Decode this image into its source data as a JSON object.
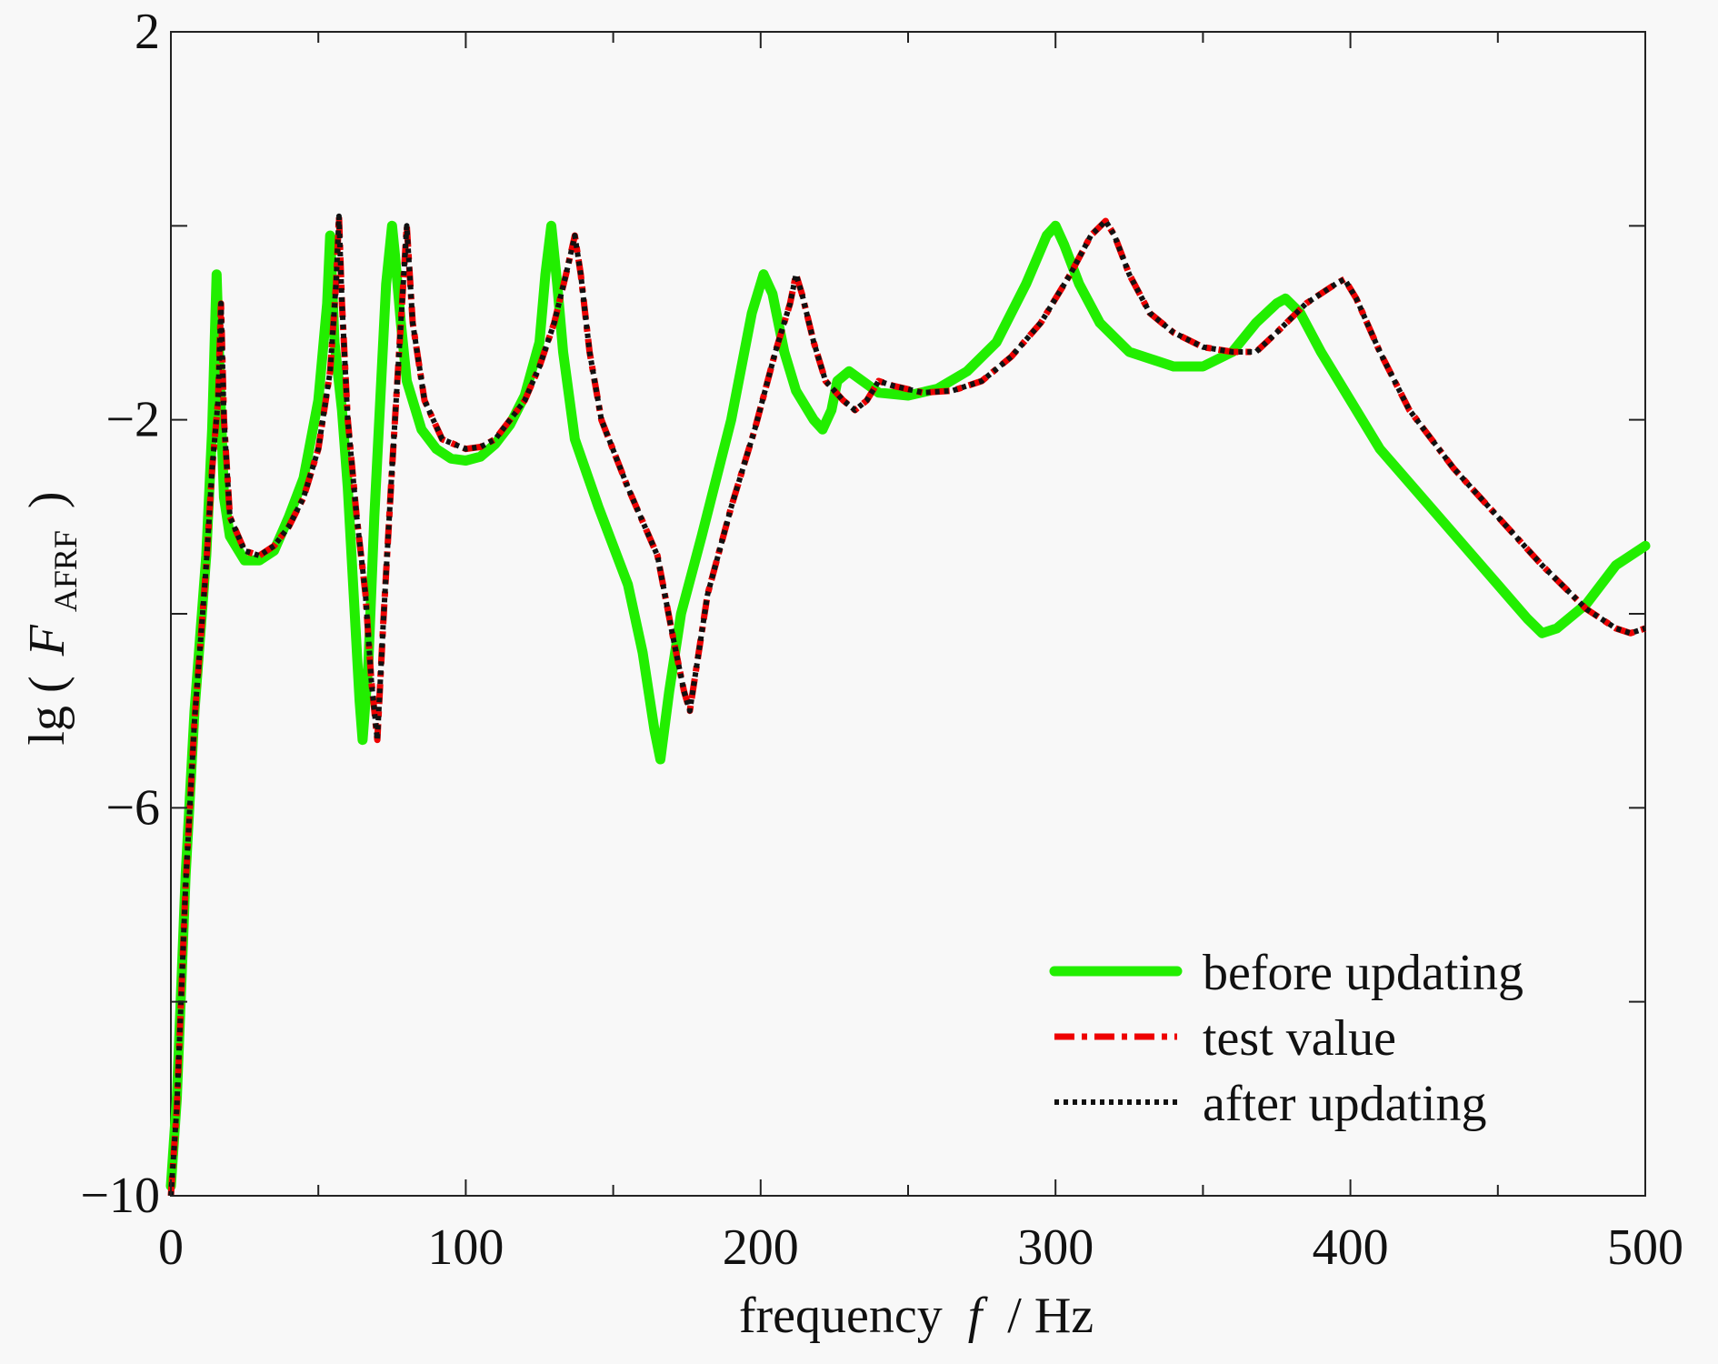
{
  "chart_data": {
    "type": "line",
    "title": "",
    "xlabel": {
      "text": "frequency",
      "var": "f",
      "unit": "/ Hz"
    },
    "ylabel": {
      "prefix": "lg (",
      "var": "F",
      "sub": "AFRF",
      "suffix": ")"
    },
    "xlim": [
      0,
      500
    ],
    "ylim": [
      -10,
      2
    ],
    "xticks": [
      0,
      100,
      200,
      300,
      400,
      500
    ],
    "xtick_labels": [
      "0",
      "100",
      "200",
      "300",
      "400",
      "500"
    ],
    "yticks": [
      -10,
      -6,
      -2,
      2
    ],
    "ytick_labels": [
      "−10",
      "−6",
      "−2",
      "2"
    ],
    "grid": false,
    "legend_position": "bottom-right",
    "series": [
      {
        "name": "before updating",
        "color": "#22ee00",
        "style": "solid",
        "points": [
          [
            0,
            -9.9
          ],
          [
            2,
            -9.0
          ],
          [
            5,
            -6.7
          ],
          [
            8,
            -5.0
          ],
          [
            12,
            -3.4
          ],
          [
            14,
            -2.1
          ],
          [
            15.5,
            -0.5
          ],
          [
            16.5,
            -1.5
          ],
          [
            18,
            -2.8
          ],
          [
            20,
            -3.2
          ],
          [
            25,
            -3.45
          ],
          [
            30,
            -3.45
          ],
          [
            35,
            -3.35
          ],
          [
            40,
            -3.0
          ],
          [
            45,
            -2.6
          ],
          [
            50,
            -1.8
          ],
          [
            53,
            -0.8
          ],
          [
            54,
            -0.1
          ],
          [
            55.5,
            -1.2
          ],
          [
            58,
            -1.9
          ],
          [
            60,
            -2.7
          ],
          [
            62,
            -3.8
          ],
          [
            64,
            -4.9
          ],
          [
            65,
            -5.3
          ],
          [
            67,
            -4.5
          ],
          [
            69,
            -3.0
          ],
          [
            71,
            -1.8
          ],
          [
            73,
            -0.6
          ],
          [
            75,
            0.0
          ],
          [
            76,
            -0.3
          ],
          [
            78,
            -1.0
          ],
          [
            80,
            -1.6
          ],
          [
            85,
            -2.1
          ],
          [
            90,
            -2.3
          ],
          [
            95,
            -2.4
          ],
          [
            100,
            -2.42
          ],
          [
            105,
            -2.38
          ],
          [
            110,
            -2.25
          ],
          [
            115,
            -2.05
          ],
          [
            120,
            -1.75
          ],
          [
            125,
            -1.2
          ],
          [
            127,
            -0.5
          ],
          [
            129,
            0.0
          ],
          [
            131,
            -0.6
          ],
          [
            133,
            -1.3
          ],
          [
            137,
            -2.2
          ],
          [
            145,
            -2.9
          ],
          [
            155,
            -3.7
          ],
          [
            160,
            -4.4
          ],
          [
            164,
            -5.2
          ],
          [
            166,
            -5.5
          ],
          [
            169,
            -4.8
          ],
          [
            173,
            -4.0
          ],
          [
            180,
            -3.2
          ],
          [
            190,
            -2.0
          ],
          [
            197,
            -0.9
          ],
          [
            201,
            -0.5
          ],
          [
            204,
            -0.7
          ],
          [
            208,
            -1.3
          ],
          [
            212,
            -1.7
          ],
          [
            218,
            -2.0
          ],
          [
            221,
            -2.1
          ],
          [
            224,
            -1.9
          ],
          [
            226,
            -1.6
          ],
          [
            230,
            -1.5
          ],
          [
            240,
            -1.72
          ],
          [
            250,
            -1.75
          ],
          [
            260,
            -1.68
          ],
          [
            270,
            -1.5
          ],
          [
            280,
            -1.2
          ],
          [
            290,
            -0.6
          ],
          [
            297,
            -0.1
          ],
          [
            300,
            0.0
          ],
          [
            303,
            -0.2
          ],
          [
            308,
            -0.6
          ],
          [
            315,
            -1.0
          ],
          [
            325,
            -1.3
          ],
          [
            340,
            -1.45
          ],
          [
            350,
            -1.45
          ],
          [
            360,
            -1.3
          ],
          [
            368,
            -1.0
          ],
          [
            375,
            -0.8
          ],
          [
            378,
            -0.75
          ],
          [
            383,
            -0.9
          ],
          [
            390,
            -1.3
          ],
          [
            400,
            -1.8
          ],
          [
            410,
            -2.3
          ],
          [
            430,
            -3.0
          ],
          [
            450,
            -3.7
          ],
          [
            460,
            -4.05
          ],
          [
            465,
            -4.2
          ],
          [
            470,
            -4.15
          ],
          [
            480,
            -3.9
          ],
          [
            490,
            -3.5
          ],
          [
            500,
            -3.3
          ]
        ]
      },
      {
        "name": "test value",
        "color": "#ee0000",
        "style": "dashdot",
        "points": [
          [
            0,
            -10.0
          ],
          [
            2,
            -9.1
          ],
          [
            5,
            -6.8
          ],
          [
            8,
            -5.1
          ],
          [
            12,
            -3.5
          ],
          [
            14,
            -2.5
          ],
          [
            16,
            -1.8
          ],
          [
            17,
            -0.8
          ],
          [
            18,
            -2.0
          ],
          [
            20,
            -3.0
          ],
          [
            25,
            -3.35
          ],
          [
            30,
            -3.4
          ],
          [
            35,
            -3.3
          ],
          [
            40,
            -3.1
          ],
          [
            45,
            -2.8
          ],
          [
            50,
            -2.3
          ],
          [
            54,
            -1.5
          ],
          [
            56,
            -0.6
          ],
          [
            57,
            0.1
          ],
          [
            58,
            -0.8
          ],
          [
            60,
            -2.0
          ],
          [
            63,
            -3.0
          ],
          [
            66,
            -3.8
          ],
          [
            68,
            -4.7
          ],
          [
            70,
            -5.3
          ],
          [
            72,
            -4.1
          ],
          [
            75,
            -2.5
          ],
          [
            78,
            -1.0
          ],
          [
            80,
            0.0
          ],
          [
            82,
            -1.0
          ],
          [
            86,
            -1.8
          ],
          [
            92,
            -2.2
          ],
          [
            100,
            -2.3
          ],
          [
            105,
            -2.28
          ],
          [
            110,
            -2.2
          ],
          [
            115,
            -2.0
          ],
          [
            120,
            -1.8
          ],
          [
            125,
            -1.45
          ],
          [
            130,
            -1.0
          ],
          [
            134,
            -0.5
          ],
          [
            137,
            -0.1
          ],
          [
            139,
            -0.5
          ],
          [
            142,
            -1.3
          ],
          [
            146,
            -2.0
          ],
          [
            155,
            -2.7
          ],
          [
            165,
            -3.4
          ],
          [
            170,
            -4.2
          ],
          [
            174,
            -4.8
          ],
          [
            176,
            -5.0
          ],
          [
            178,
            -4.6
          ],
          [
            182,
            -3.8
          ],
          [
            190,
            -2.9
          ],
          [
            198,
            -2.1
          ],
          [
            205,
            -1.3
          ],
          [
            210,
            -0.8
          ],
          [
            212,
            -0.5
          ],
          [
            214,
            -0.7
          ],
          [
            218,
            -1.2
          ],
          [
            222,
            -1.6
          ],
          [
            228,
            -1.8
          ],
          [
            232,
            -1.9
          ],
          [
            236,
            -1.8
          ],
          [
            240,
            -1.6
          ],
          [
            245,
            -1.65
          ],
          [
            255,
            -1.72
          ],
          [
            265,
            -1.7
          ],
          [
            275,
            -1.6
          ],
          [
            285,
            -1.35
          ],
          [
            295,
            -1.0
          ],
          [
            305,
            -0.5
          ],
          [
            312,
            -0.1
          ],
          [
            317,
            0.05
          ],
          [
            320,
            -0.1
          ],
          [
            325,
            -0.5
          ],
          [
            332,
            -0.9
          ],
          [
            340,
            -1.1
          ],
          [
            350,
            -1.25
          ],
          [
            360,
            -1.3
          ],
          [
            368,
            -1.3
          ],
          [
            375,
            -1.1
          ],
          [
            385,
            -0.8
          ],
          [
            395,
            -0.6
          ],
          [
            398,
            -0.55
          ],
          [
            402,
            -0.75
          ],
          [
            410,
            -1.3
          ],
          [
            420,
            -1.9
          ],
          [
            435,
            -2.5
          ],
          [
            450,
            -3.0
          ],
          [
            465,
            -3.5
          ],
          [
            480,
            -3.95
          ],
          [
            490,
            -4.15
          ],
          [
            495,
            -4.2
          ],
          [
            500,
            -4.15
          ]
        ]
      },
      {
        "name": "after updating",
        "color": "#111111",
        "style": "dotted",
        "points": [
          [
            0,
            -10.0
          ],
          [
            2,
            -9.1
          ],
          [
            5,
            -6.8
          ],
          [
            8,
            -5.1
          ],
          [
            12,
            -3.5
          ],
          [
            14,
            -2.5
          ],
          [
            16,
            -1.8
          ],
          [
            17,
            -0.8
          ],
          [
            18,
            -2.0
          ],
          [
            20,
            -3.0
          ],
          [
            25,
            -3.35
          ],
          [
            30,
            -3.4
          ],
          [
            35,
            -3.3
          ],
          [
            40,
            -3.1
          ],
          [
            45,
            -2.8
          ],
          [
            50,
            -2.3
          ],
          [
            54,
            -1.5
          ],
          [
            56,
            -0.6
          ],
          [
            57,
            0.1
          ],
          [
            58,
            -0.8
          ],
          [
            60,
            -2.0
          ],
          [
            63,
            -3.0
          ],
          [
            66,
            -3.8
          ],
          [
            68,
            -4.7
          ],
          [
            70,
            -5.3
          ],
          [
            72,
            -4.1
          ],
          [
            75,
            -2.5
          ],
          [
            78,
            -1.0
          ],
          [
            80,
            0.0
          ],
          [
            82,
            -1.0
          ],
          [
            86,
            -1.8
          ],
          [
            92,
            -2.2
          ],
          [
            100,
            -2.3
          ],
          [
            105,
            -2.28
          ],
          [
            110,
            -2.2
          ],
          [
            115,
            -2.0
          ],
          [
            120,
            -1.8
          ],
          [
            125,
            -1.45
          ],
          [
            130,
            -1.0
          ],
          [
            134,
            -0.5
          ],
          [
            137,
            -0.1
          ],
          [
            139,
            -0.5
          ],
          [
            142,
            -1.3
          ],
          [
            146,
            -2.0
          ],
          [
            155,
            -2.7
          ],
          [
            165,
            -3.4
          ],
          [
            170,
            -4.2
          ],
          [
            174,
            -4.8
          ],
          [
            176,
            -5.0
          ],
          [
            178,
            -4.6
          ],
          [
            182,
            -3.8
          ],
          [
            190,
            -2.9
          ],
          [
            198,
            -2.1
          ],
          [
            205,
            -1.3
          ],
          [
            210,
            -0.8
          ],
          [
            212,
            -0.5
          ],
          [
            214,
            -0.7
          ],
          [
            218,
            -1.2
          ],
          [
            222,
            -1.6
          ],
          [
            228,
            -1.8
          ],
          [
            232,
            -1.9
          ],
          [
            236,
            -1.8
          ],
          [
            240,
            -1.6
          ],
          [
            245,
            -1.65
          ],
          [
            255,
            -1.72
          ],
          [
            265,
            -1.7
          ],
          [
            275,
            -1.6
          ],
          [
            285,
            -1.35
          ],
          [
            295,
            -1.0
          ],
          [
            305,
            -0.5
          ],
          [
            312,
            -0.1
          ],
          [
            317,
            0.05
          ],
          [
            320,
            -0.1
          ],
          [
            325,
            -0.5
          ],
          [
            332,
            -0.9
          ],
          [
            340,
            -1.1
          ],
          [
            350,
            -1.25
          ],
          [
            360,
            -1.3
          ],
          [
            368,
            -1.3
          ],
          [
            375,
            -1.1
          ],
          [
            385,
            -0.8
          ],
          [
            395,
            -0.6
          ],
          [
            398,
            -0.55
          ],
          [
            402,
            -0.75
          ],
          [
            410,
            -1.3
          ],
          [
            420,
            -1.9
          ],
          [
            435,
            -2.5
          ],
          [
            450,
            -3.0
          ],
          [
            465,
            -3.5
          ],
          [
            480,
            -3.95
          ],
          [
            490,
            -4.15
          ],
          [
            495,
            -4.2
          ],
          [
            500,
            -4.15
          ]
        ]
      }
    ]
  }
}
